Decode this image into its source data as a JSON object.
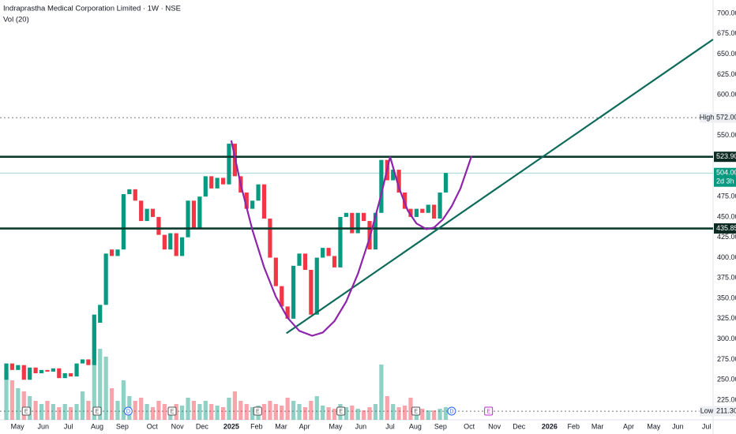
{
  "chart_data": {
    "type": "candlestick",
    "title": "Indraprastha Medical Corporation Limited · 1W · NSE",
    "volume_label": "Vol (20)",
    "up_color": "#089981",
    "down_color": "#f23645",
    "x": [
      0,
      1,
      2,
      3,
      4,
      5,
      6,
      7,
      8,
      9,
      10,
      11,
      12,
      13,
      14,
      15,
      16,
      17,
      18,
      19,
      20,
      21,
      22,
      23,
      24,
      25,
      26,
      27,
      28,
      29,
      30,
      31,
      32,
      33,
      34,
      35,
      36,
      37,
      38,
      39,
      40,
      41,
      42,
      43,
      44,
      45,
      46,
      47,
      48,
      49,
      50,
      51,
      52,
      53,
      54,
      55,
      56,
      57,
      58,
      59,
      60,
      61,
      62,
      63,
      64,
      65,
      66,
      67,
      68,
      69,
      70,
      71,
      72,
      73,
      74,
      75
    ],
    "open": [
      250,
      270,
      262,
      268,
      250,
      265,
      258,
      262,
      260,
      264,
      252,
      258,
      254,
      270,
      275,
      268,
      320,
      342,
      410,
      402,
      410,
      478,
      484,
      470,
      445,
      460,
      450,
      428,
      410,
      430,
      402,
      425,
      470,
      435,
      475,
      500,
      485,
      498,
      490,
      540,
      500,
      480,
      460,
      470,
      490,
      448,
      400,
      365,
      340,
      325,
      390,
      405,
      385,
      330,
      400,
      412,
      402,
      388,
      450,
      455,
      430,
      455,
      445,
      410,
      455,
      520,
      495,
      508,
      480,
      460,
      450,
      460,
      455,
      465,
      448,
      480
    ],
    "high": {
      "value": 572,
      "label": "572.00",
      "tag": "High"
    },
    "low": {
      "value": 211.3,
      "label": "211.30",
      "tag": "Low"
    },
    "close": [
      270,
      262,
      268,
      250,
      265,
      258,
      262,
      260,
      264,
      252,
      258,
      254,
      270,
      275,
      268,
      330,
      342,
      405,
      402,
      410,
      478,
      484,
      470,
      445,
      460,
      450,
      428,
      410,
      430,
      402,
      425,
      470,
      435,
      475,
      500,
      485,
      498,
      490,
      540,
      500,
      480,
      460,
      470,
      490,
      448,
      400,
      365,
      340,
      325,
      390,
      405,
      385,
      330,
      400,
      412,
      402,
      388,
      450,
      455,
      430,
      455,
      445,
      410,
      455,
      520,
      495,
      508,
      480,
      460,
      450,
      460,
      455,
      465,
      448,
      480,
      504
    ],
    "volume": [
      30,
      25,
      20,
      18,
      15,
      12,
      10,
      12,
      10,
      8,
      10,
      8,
      10,
      18,
      12,
      60,
      45,
      40,
      20,
      12,
      25,
      15,
      12,
      14,
      10,
      8,
      12,
      10,
      8,
      10,
      9,
      14,
      12,
      10,
      12,
      10,
      9,
      8,
      14,
      18,
      12,
      10,
      8,
      9,
      10,
      12,
      10,
      9,
      14,
      12,
      10,
      8,
      12,
      15,
      9,
      8,
      7,
      10,
      8,
      9,
      7,
      6,
      8,
      10,
      35,
      15,
      10,
      8,
      9,
      14,
      8,
      7,
      6,
      6,
      7,
      8
    ],
    "y2lim": [
      0,
      100
    ],
    "xlim": [
      -1.08,
      120.62
    ],
    "ylim": [
      200.8,
      716.5
    ],
    "xticks": [
      {
        "value": 1.9,
        "label": "May"
      },
      {
        "value": 6.3,
        "label": "Jun"
      },
      {
        "value": 10.6,
        "label": "Jul"
      },
      {
        "value": 15.5,
        "label": "Aug"
      },
      {
        "value": 19.8,
        "label": "Sep"
      },
      {
        "value": 24.9,
        "label": "Oct"
      },
      {
        "value": 29.2,
        "label": "Nov"
      },
      {
        "value": 33.4,
        "label": "Dec"
      },
      {
        "value": 38.4,
        "label": "2025"
      },
      {
        "value": 42.7,
        "label": "Feb"
      },
      {
        "value": 46.9,
        "label": "Mar"
      },
      {
        "value": 50.9,
        "label": "Apr"
      },
      {
        "value": 56.2,
        "label": "May"
      },
      {
        "value": 60.5,
        "label": "Jun"
      },
      {
        "value": 65.5,
        "label": "Jul"
      },
      {
        "value": 69.8,
        "label": "Aug"
      },
      {
        "value": 74.1,
        "label": "Sep"
      },
      {
        "value": 79,
        "label": "Oct"
      },
      {
        "value": 83.3,
        "label": "Nov"
      },
      {
        "value": 87.5,
        "label": "Dec"
      },
      {
        "value": 92.7,
        "label": "2026"
      },
      {
        "value": 96.8,
        "label": "Feb"
      },
      {
        "value": 100.9,
        "label": "Mar"
      },
      {
        "value": 106.2,
        "label": "Apr"
      },
      {
        "value": 110.5,
        "label": "May"
      },
      {
        "value": 114.6,
        "label": "Jun"
      },
      {
        "value": 119.5,
        "label": "Jul"
      }
    ],
    "yticks": [
      {
        "value": 700,
        "label": "700.00"
      },
      {
        "value": 675,
        "label": "675.00"
      },
      {
        "value": 650,
        "label": "650.00"
      },
      {
        "value": 625,
        "label": "625.00"
      },
      {
        "value": 600,
        "label": "600.00"
      },
      {
        "value": 550,
        "label": "550.00"
      },
      {
        "value": 475,
        "label": "475.00"
      },
      {
        "value": 450,
        "label": "450.00"
      },
      {
        "value": 425,
        "label": "425.00"
      },
      {
        "value": 400,
        "label": "400.00"
      },
      {
        "value": 375,
        "label": "375.00"
      },
      {
        "value": 350,
        "label": "350.00"
      },
      {
        "value": 325,
        "label": "325.00"
      },
      {
        "value": 300,
        "label": "300.00"
      },
      {
        "value": 275,
        "label": "275.00"
      },
      {
        "value": 250,
        "label": "250.00"
      },
      {
        "value": 225,
        "label": "225.00"
      }
    ],
    "levels": [
      {
        "value": 523.9,
        "label": "523.90"
      },
      {
        "value": 435.85,
        "label": "435.85"
      }
    ],
    "last": {
      "value": 504,
      "label": "504.00",
      "countdown": "2d 3h"
    },
    "drawings": [
      {
        "color": "#0e6b5b",
        "x": [
          47.8,
          120.6
        ],
        "y": [
          307,
          668
        ]
      },
      {
        "color": "#8e24aa",
        "x": [
          38.4,
          40,
          42,
          44,
          46,
          48,
          50,
          52.2,
          54,
          56,
          58,
          60,
          62,
          64,
          65.5
        ],
        "y": [
          544,
          490,
          434,
          388,
          352,
          326,
          310,
          304,
          308,
          322,
          346,
          380,
          424,
          478,
          524
        ]
      },
      {
        "color": "#8e24aa",
        "x": [
          65.5,
          67,
          68.5,
          70,
          71.7,
          73,
          74.5,
          76,
          77.5,
          79.4
        ],
        "y": [
          524,
          486,
          458,
          442,
          435,
          437,
          447,
          463,
          485,
          525
        ]
      }
    ],
    "events": [
      {
        "x": 3.4,
        "label": "E",
        "color": "#555"
      },
      {
        "x": 15.5,
        "label": "E",
        "color": "#555"
      },
      {
        "x": 20.8,
        "label": "D",
        "color": "#2962ff"
      },
      {
        "x": 28.3,
        "label": "E",
        "color": "#555"
      },
      {
        "x": 42.9,
        "label": "E",
        "color": "#555"
      },
      {
        "x": 57.1,
        "label": "E",
        "color": "#555"
      },
      {
        "x": 69.9,
        "label": "E",
        "color": "#555"
      },
      {
        "x": 76,
        "label": "D",
        "color": "#2962ff"
      },
      {
        "x": 82.3,
        "label": "E",
        "color": "#c026d3"
      }
    ]
  }
}
